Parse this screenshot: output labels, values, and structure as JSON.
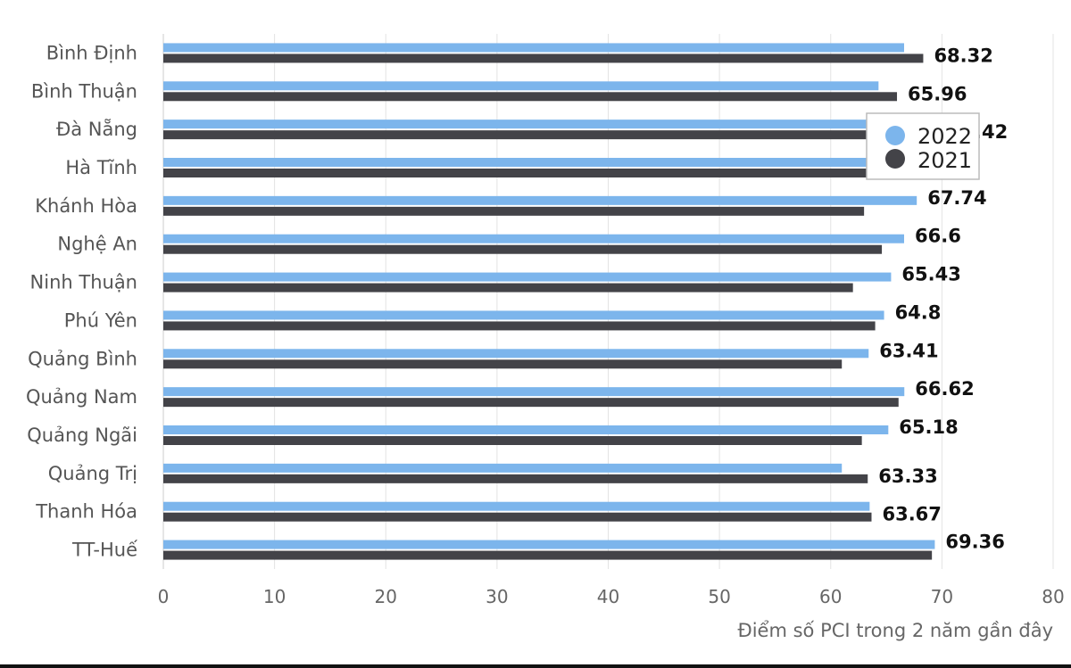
{
  "chart_data": {
    "type": "bar",
    "orientation": "horizontal",
    "categories": [
      "Bình Định",
      "Bình Thuận",
      "Đà Nẵng",
      "Hà Tĩnh",
      "Khánh Hòa",
      "Nghệ An",
      "Ninh Thuận",
      "Phú Yên",
      "Quảng Bình",
      "Quảng Nam",
      "Quảng Ngãi",
      "Quảng Trị",
      "Thanh Hóa",
      "TT-Huế"
    ],
    "series": [
      {
        "name": "2022",
        "color": "#7cb5ec",
        "values": [
          66.6,
          64.3,
          67.5,
          67.2,
          67.74,
          66.6,
          65.43,
          64.8,
          63.41,
          66.62,
          65.18,
          61.0,
          63.5,
          69.36
        ]
      },
      {
        "name": "2021",
        "color": "#434348",
        "values": [
          68.32,
          65.96,
          70.42,
          68.0,
          63.0,
          64.6,
          62.0,
          64.0,
          61.0,
          66.1,
          62.8,
          63.33,
          63.67,
          69.1
        ]
      }
    ],
    "data_labels": [
      "68.32",
      "65.96",
      ".42",
      "",
      "67.74",
      "66.6",
      "65.43",
      "64.8",
      "63.41",
      "66.62",
      "65.18",
      "63.33",
      "63.67",
      "69.36"
    ],
    "xlabel": "Điểm số PCI trong 2 năm gần đây",
    "xlim": [
      0,
      80
    ],
    "xticks": [
      0,
      10,
      20,
      30,
      40,
      50,
      60,
      70,
      80
    ],
    "grid": true,
    "legend_position": "top-right"
  }
}
